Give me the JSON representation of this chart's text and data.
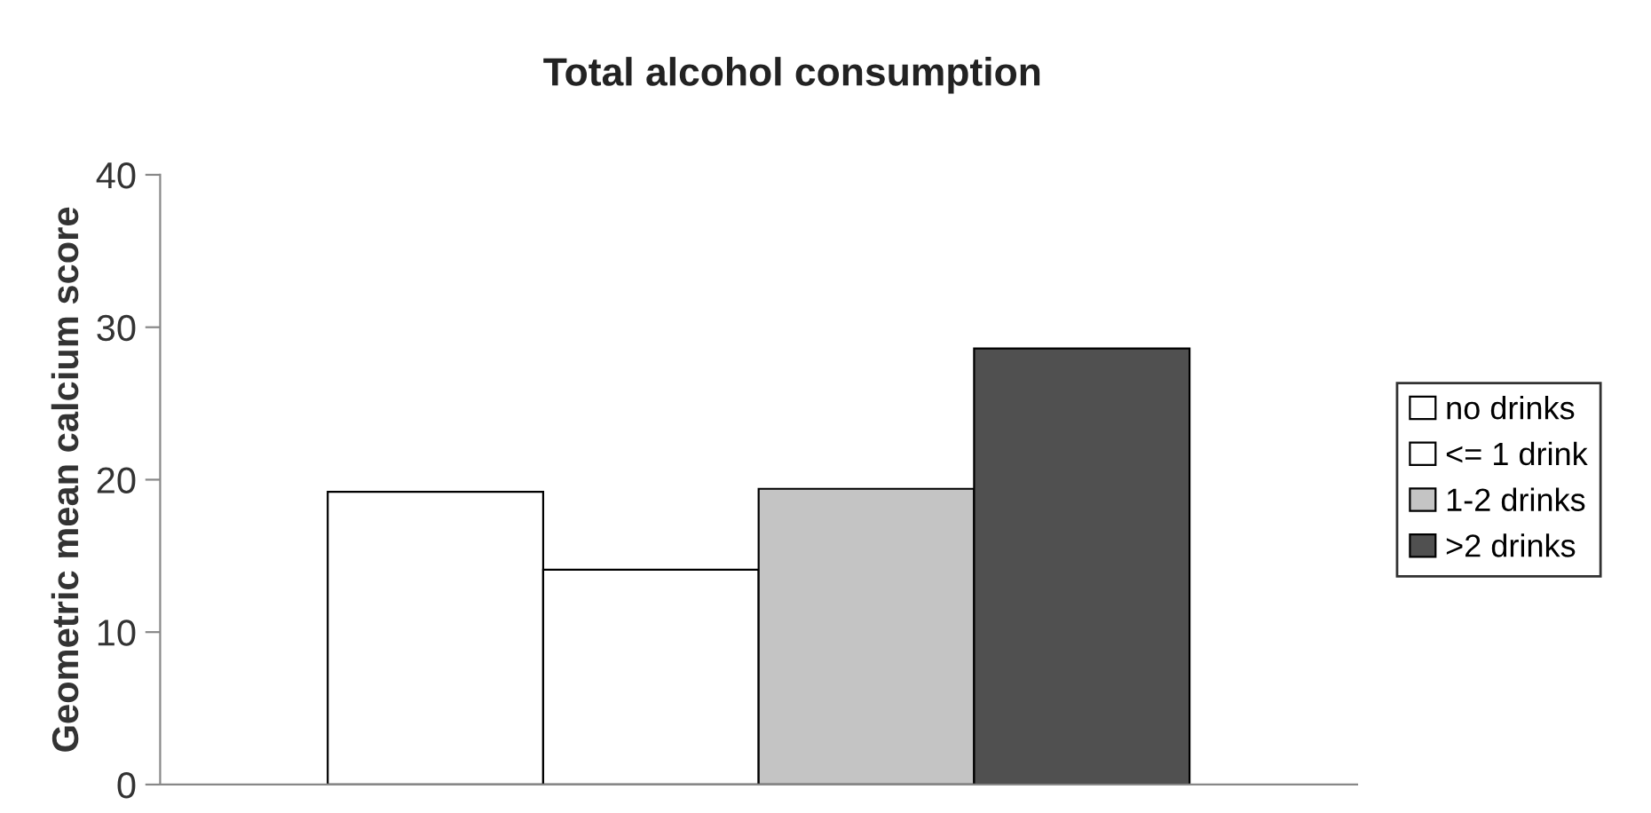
{
  "chart_data": {
    "type": "bar",
    "title": "Total alcohol consumption",
    "ylabel": "Geometric mean calcium score",
    "categories": [
      null
    ],
    "series": [
      {
        "name": "no drinks",
        "color": "#ffffff",
        "values": [
          19.2
        ]
      },
      {
        "name": "<= 1 drink",
        "color": "#ffffff",
        "values": [
          14.1
        ]
      },
      {
        "name": "1-2 drinks",
        "color": "#c4c4c4",
        "values": [
          19.4
        ]
      },
      {
        "name": ">2 drinks",
        "color": "#505050",
        "values": [
          28.6
        ]
      }
    ],
    "ylim": [
      0,
      40
    ],
    "yticks": [
      0,
      10,
      20,
      30,
      40
    ],
    "grid": false,
    "legend": "right"
  }
}
